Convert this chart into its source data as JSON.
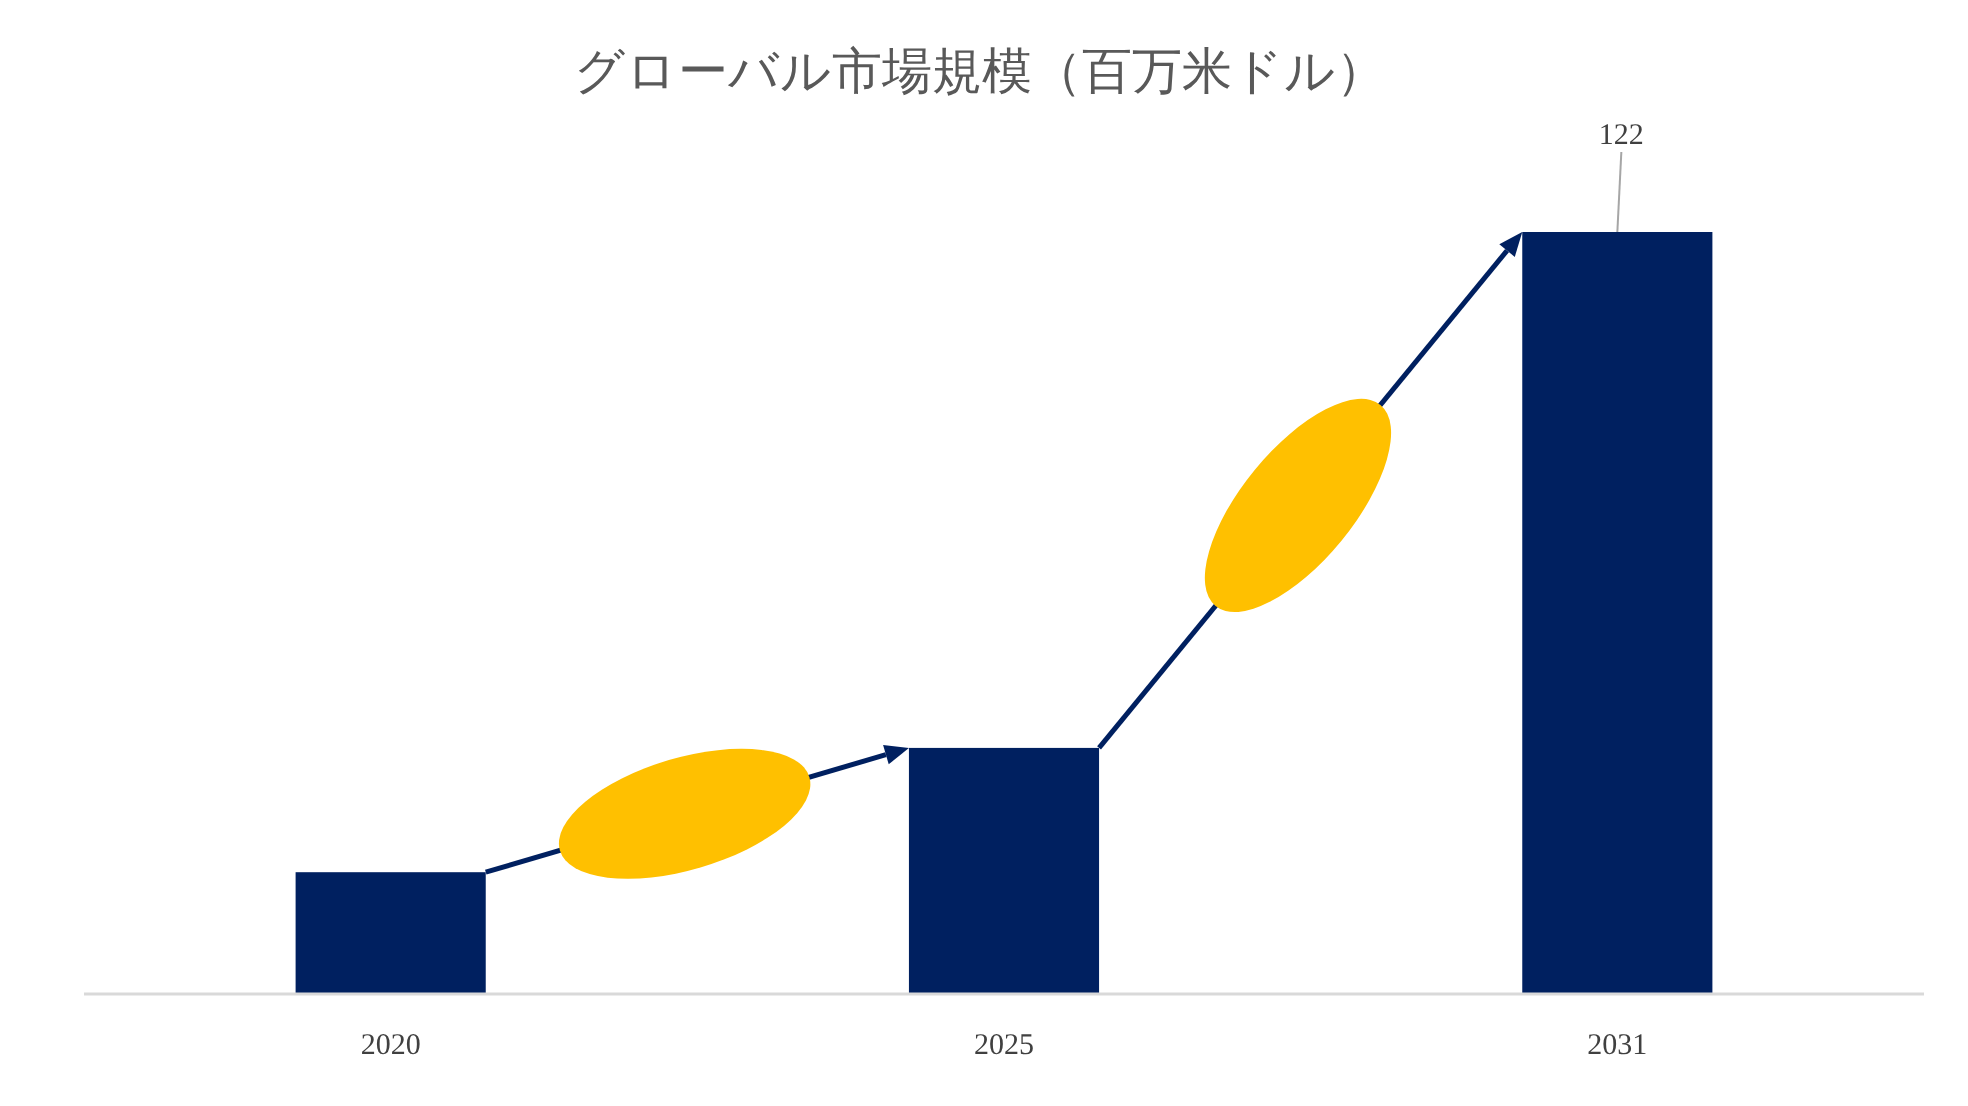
{
  "chart_data": {
    "type": "bar",
    "title": "グローバル市場規模（百万米ドル）",
    "categories": [
      "2020",
      "2025",
      "2031"
    ],
    "values": [
      19.5,
      39.4,
      122
    ],
    "color": "#002060",
    "value_labels": [
      null,
      null,
      "122"
    ]
  }
}
